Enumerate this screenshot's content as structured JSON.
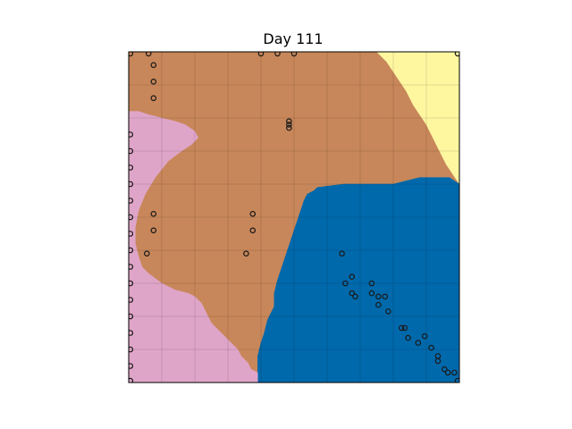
{
  "chart_data": {
    "type": "heatmap",
    "title": "Day 111",
    "xlabel": "",
    "ylabel": "",
    "xlim": [
      0,
      100
    ],
    "ylim": [
      0,
      100
    ],
    "axis_ticks": "hidden",
    "grid": true,
    "regions": [
      {
        "id": "tan",
        "color": "#c8875a",
        "boundary": [
          [
            0,
            100
          ],
          [
            75,
            100
          ],
          [
            76,
            99
          ],
          [
            78,
            97
          ],
          [
            80,
            94
          ],
          [
            82,
            91
          ],
          [
            84,
            88
          ],
          [
            86,
            84
          ],
          [
            88,
            81
          ],
          [
            90,
            78
          ],
          [
            92,
            74
          ],
          [
            94,
            70
          ],
          [
            96,
            66
          ],
          [
            100,
            60
          ],
          [
            100,
            0
          ],
          [
            0,
            0
          ]
        ]
      },
      {
        "id": "yellow",
        "color": "#fff6a0",
        "boundary": [
          [
            75,
            100
          ],
          [
            100,
            100
          ],
          [
            100,
            60
          ],
          [
            98,
            63
          ],
          [
            96,
            66
          ],
          [
            94,
            70
          ],
          [
            92,
            74
          ],
          [
            90,
            78
          ],
          [
            88,
            81
          ],
          [
            86,
            84
          ],
          [
            84,
            88
          ],
          [
            82,
            91
          ],
          [
            80,
            94
          ],
          [
            78,
            97
          ],
          [
            76,
            99
          ]
        ]
      },
      {
        "id": "blue",
        "color": "#0069ab",
        "boundary": [
          [
            39,
            0
          ],
          [
            100,
            0
          ],
          [
            100,
            60
          ],
          [
            97,
            62
          ],
          [
            92,
            62
          ],
          [
            88,
            62
          ],
          [
            84,
            61
          ],
          [
            80,
            60
          ],
          [
            75,
            60
          ],
          [
            65,
            60
          ],
          [
            57,
            59
          ],
          [
            56,
            58
          ],
          [
            54,
            57
          ],
          [
            53,
            55
          ],
          [
            52,
            52
          ],
          [
            51,
            49
          ],
          [
            50,
            46
          ],
          [
            49,
            43
          ],
          [
            48,
            40
          ],
          [
            47,
            37
          ],
          [
            46,
            34
          ],
          [
            45,
            31
          ],
          [
            44,
            27
          ],
          [
            44,
            23
          ],
          [
            43,
            21
          ],
          [
            42,
            19
          ],
          [
            41,
            15
          ],
          [
            40,
            12
          ],
          [
            39,
            8
          ],
          [
            39,
            4
          ]
        ]
      },
      {
        "id": "pink",
        "color": "#dfa5c8",
        "boundary": [
          [
            0,
            0
          ],
          [
            39,
            0
          ],
          [
            39,
            3
          ],
          [
            37,
            4
          ],
          [
            36,
            6
          ],
          [
            35,
            7
          ],
          [
            34,
            8
          ],
          [
            33,
            10
          ],
          [
            31,
            12
          ],
          [
            29,
            14
          ],
          [
            27,
            16
          ],
          [
            25,
            18
          ],
          [
            24,
            20
          ],
          [
            23,
            22
          ],
          [
            22,
            24
          ],
          [
            20,
            26
          ],
          [
            18,
            27
          ],
          [
            14,
            28
          ],
          [
            10,
            30
          ],
          [
            6,
            33
          ],
          [
            4,
            35
          ],
          [
            3,
            38
          ],
          [
            2,
            42
          ],
          [
            2,
            47
          ],
          [
            3,
            52
          ],
          [
            5,
            57
          ],
          [
            8,
            62
          ],
          [
            12,
            67
          ],
          [
            16,
            70
          ],
          [
            19,
            72
          ],
          [
            21,
            74
          ],
          [
            20,
            76
          ],
          [
            17,
            78
          ],
          [
            14,
            79
          ],
          [
            10,
            80
          ],
          [
            6,
            81
          ],
          [
            3,
            82
          ],
          [
            0,
            82
          ]
        ]
      }
    ],
    "points": [
      {
        "x": 0.5,
        "y": 99.5
      },
      {
        "x": 6,
        "y": 99.5
      },
      {
        "x": 40,
        "y": 99.5
      },
      {
        "x": 45,
        "y": 99.5
      },
      {
        "x": 50,
        "y": 99.5
      },
      {
        "x": 99.5,
        "y": 99.5
      },
      {
        "x": 7.5,
        "y": 96
      },
      {
        "x": 7.5,
        "y": 91
      },
      {
        "x": 7.5,
        "y": 86
      },
      {
        "x": 48.5,
        "y": 79
      },
      {
        "x": 48.5,
        "y": 78
      },
      {
        "x": 48.5,
        "y": 77
      },
      {
        "x": 0.5,
        "y": 75
      },
      {
        "x": 0.5,
        "y": 70
      },
      {
        "x": 0.5,
        "y": 65
      },
      {
        "x": 0.5,
        "y": 60
      },
      {
        "x": 0.5,
        "y": 55
      },
      {
        "x": 0.5,
        "y": 50
      },
      {
        "x": 0.5,
        "y": 45
      },
      {
        "x": 0.5,
        "y": 40
      },
      {
        "x": 0.5,
        "y": 35
      },
      {
        "x": 0.5,
        "y": 30
      },
      {
        "x": 0.5,
        "y": 25
      },
      {
        "x": 0.5,
        "y": 20
      },
      {
        "x": 0.5,
        "y": 15
      },
      {
        "x": 0.5,
        "y": 10
      },
      {
        "x": 0.5,
        "y": 5
      },
      {
        "x": 0.5,
        "y": 0.5
      },
      {
        "x": 7.5,
        "y": 51
      },
      {
        "x": 7.5,
        "y": 46
      },
      {
        "x": 5.5,
        "y": 39
      },
      {
        "x": 37.5,
        "y": 51
      },
      {
        "x": 37.5,
        "y": 46
      },
      {
        "x": 35.5,
        "y": 39
      },
      {
        "x": 64.5,
        "y": 39
      },
      {
        "x": 67.5,
        "y": 32
      },
      {
        "x": 65.5,
        "y": 30
      },
      {
        "x": 67.5,
        "y": 27
      },
      {
        "x": 68.5,
        "y": 26
      },
      {
        "x": 73.5,
        "y": 30
      },
      {
        "x": 73.5,
        "y": 27
      },
      {
        "x": 75.5,
        "y": 26
      },
      {
        "x": 77.5,
        "y": 26
      },
      {
        "x": 75.5,
        "y": 23.5
      },
      {
        "x": 78.5,
        "y": 21.5
      },
      {
        "x": 82.5,
        "y": 16.5
      },
      {
        "x": 83.5,
        "y": 16.5
      },
      {
        "x": 84.5,
        "y": 13.5
      },
      {
        "x": 89.5,
        "y": 14
      },
      {
        "x": 87.5,
        "y": 12
      },
      {
        "x": 91.5,
        "y": 10.5
      },
      {
        "x": 93.5,
        "y": 8
      },
      {
        "x": 93.5,
        "y": 6.5
      },
      {
        "x": 95.5,
        "y": 4
      },
      {
        "x": 96.5,
        "y": 3
      },
      {
        "x": 98.5,
        "y": 3
      },
      {
        "x": 99.5,
        "y": 0.5
      }
    ]
  }
}
